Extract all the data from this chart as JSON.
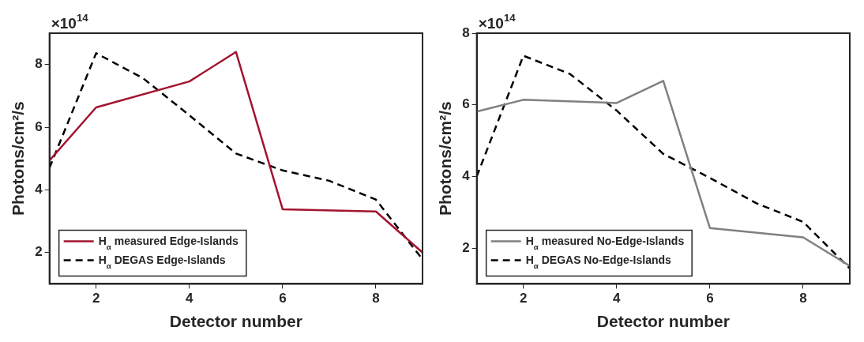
{
  "chart_data": [
    {
      "type": "line",
      "xlabel": "Detector number",
      "ylabel": "Photons/cm²/s",
      "annotations": [
        "×10$^{14}$"
      ],
      "x": [
        1,
        2,
        3,
        4,
        5,
        6,
        7,
        8,
        9
      ],
      "xlim": [
        1,
        9
      ],
      "xticks": [
        2,
        4,
        6,
        8
      ],
      "ylim": [
        1,
        9
      ],
      "yticks": [
        2,
        4,
        6,
        8
      ],
      "legend": "bottom left",
      "series": [
        {
          "name": "H$_{α}$ measured Edge-Islands",
          "color": "#a2142f",
          "line_style": "solid",
          "values": [
            4.94,
            6.63,
            null,
            7.46,
            8.4,
            3.38,
            null,
            3.31,
            2.0
          ]
        },
        {
          "name": "H$_{α}$ DEGAS Edge-Islands",
          "color": "#000000",
          "line_style": "dashed",
          "values": [
            4.7,
            8.36,
            7.57,
            6.38,
            5.16,
            4.62,
            4.29,
            3.69,
            1.78
          ]
        }
      ]
    },
    {
      "type": "line",
      "xlabel": "Detector number",
      "ylabel": "Photons/cm²/s",
      "annotations": [
        "×10$^{14}$"
      ],
      "x": [
        1,
        2,
        3,
        4,
        5,
        6,
        7,
        8,
        9
      ],
      "xlim": [
        1,
        9
      ],
      "xticks": [
        2,
        4,
        6,
        8
      ],
      "ylim": [
        1,
        8
      ],
      "yticks": [
        2,
        4,
        6,
        8
      ],
      "legend": "bottom left",
      "series": [
        {
          "name": "H$_{α}$ measured No-Edge-Islands",
          "color": "#808080",
          "line_style": "solid",
          "values": [
            5.81,
            6.14,
            null,
            6.05,
            6.67,
            2.56,
            null,
            2.3,
            1.5
          ]
        },
        {
          "name": "H$_{α}$ DEGAS No-Edge-Islands",
          "color": "#000000",
          "line_style": "dashed",
          "values": [
            4.0,
            7.37,
            6.86,
            5.84,
            4.63,
            3.96,
            3.25,
            2.73,
            1.43
          ]
        }
      ]
    }
  ]
}
